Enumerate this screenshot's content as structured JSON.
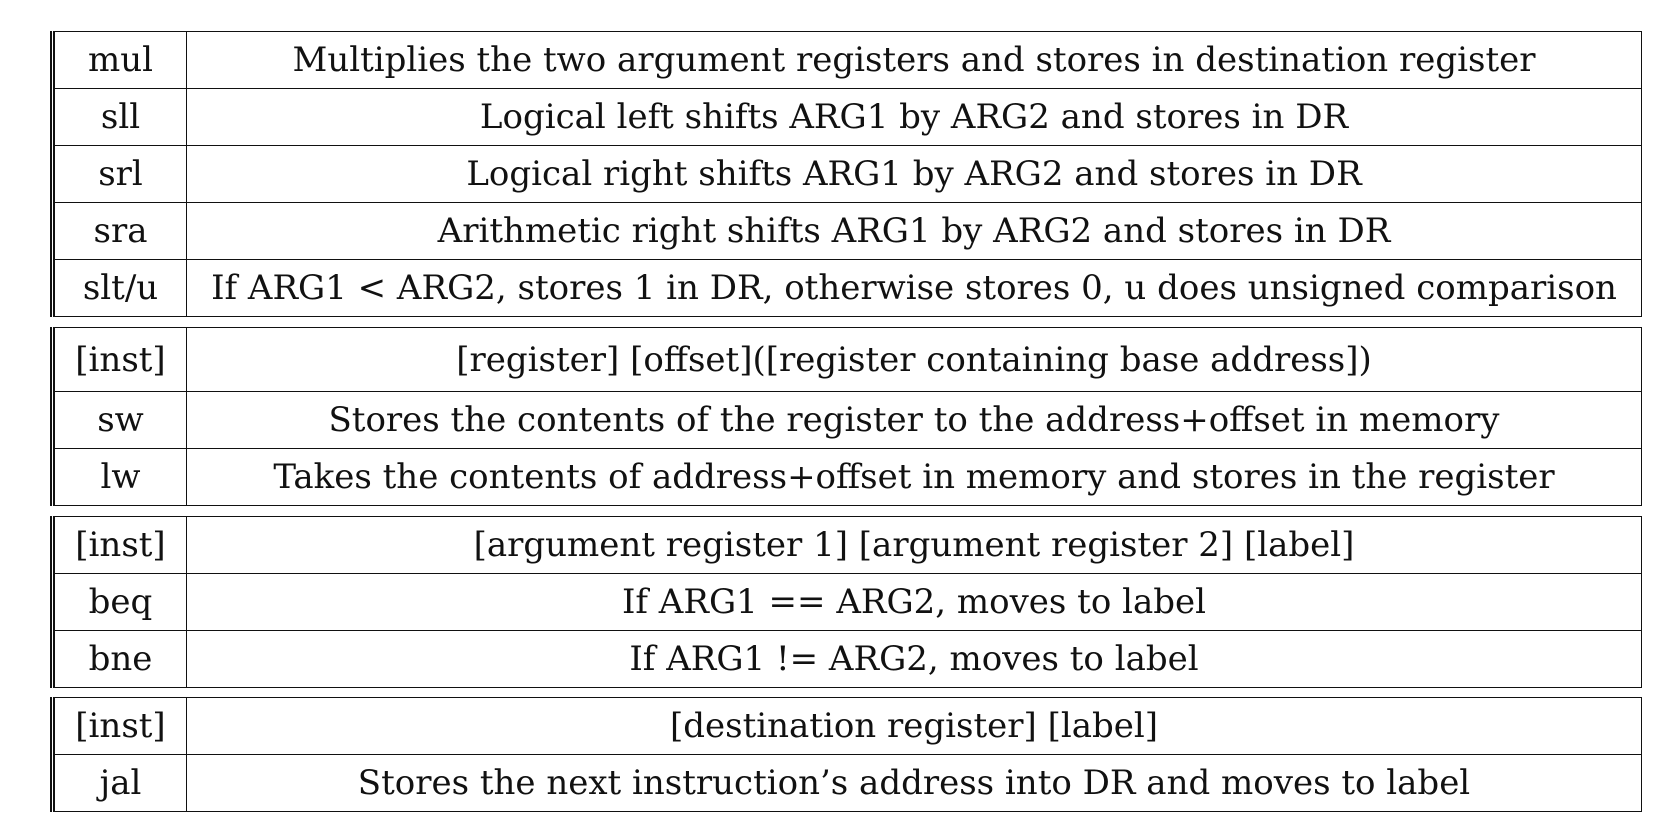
{
  "blocks": [
    {
      "rows": [
        {
          "inst": "mul",
          "desc": "Multiplies the two argument registers and stores in destination register"
        },
        {
          "inst": "sll",
          "desc": "Logical left shifts ARG1 by ARG2 and stores in DR"
        },
        {
          "inst": "srl",
          "desc": "Logical right shifts ARG1 by ARG2 and stores in DR"
        },
        {
          "inst": "sra",
          "desc": "Arithmetic right shifts ARG1 by ARG2 and stores in DR"
        },
        {
          "inst": "slt/u",
          "desc": "If ARG1 < ARG2, stores 1 in DR, otherwise stores 0, u does unsigned comparison"
        }
      ]
    },
    {
      "rows": [
        {
          "inst": "[inst]",
          "desc": "[register] [offset]([register containing base address])"
        },
        {
          "inst": "sw",
          "desc": "Stores the contents of the register to the address+offset in memory"
        },
        {
          "inst": "lw",
          "desc": "Takes the contents of address+offset in memory and stores in the register"
        }
      ]
    },
    {
      "rows": [
        {
          "inst": "[inst]",
          "desc": "[argument register 1] [argument register 2] [label]"
        },
        {
          "inst": "beq",
          "desc": "If ARG1 == ARG2, moves to label"
        },
        {
          "inst": "bne",
          "desc": "If ARG1 != ARG2, moves to label"
        }
      ]
    },
    {
      "rows": [
        {
          "inst": "[inst]",
          "desc": "[destination register] [label]"
        },
        {
          "inst": "jal",
          "desc": "Stores the next instruction’s address into DR and moves to label"
        }
      ]
    }
  ]
}
